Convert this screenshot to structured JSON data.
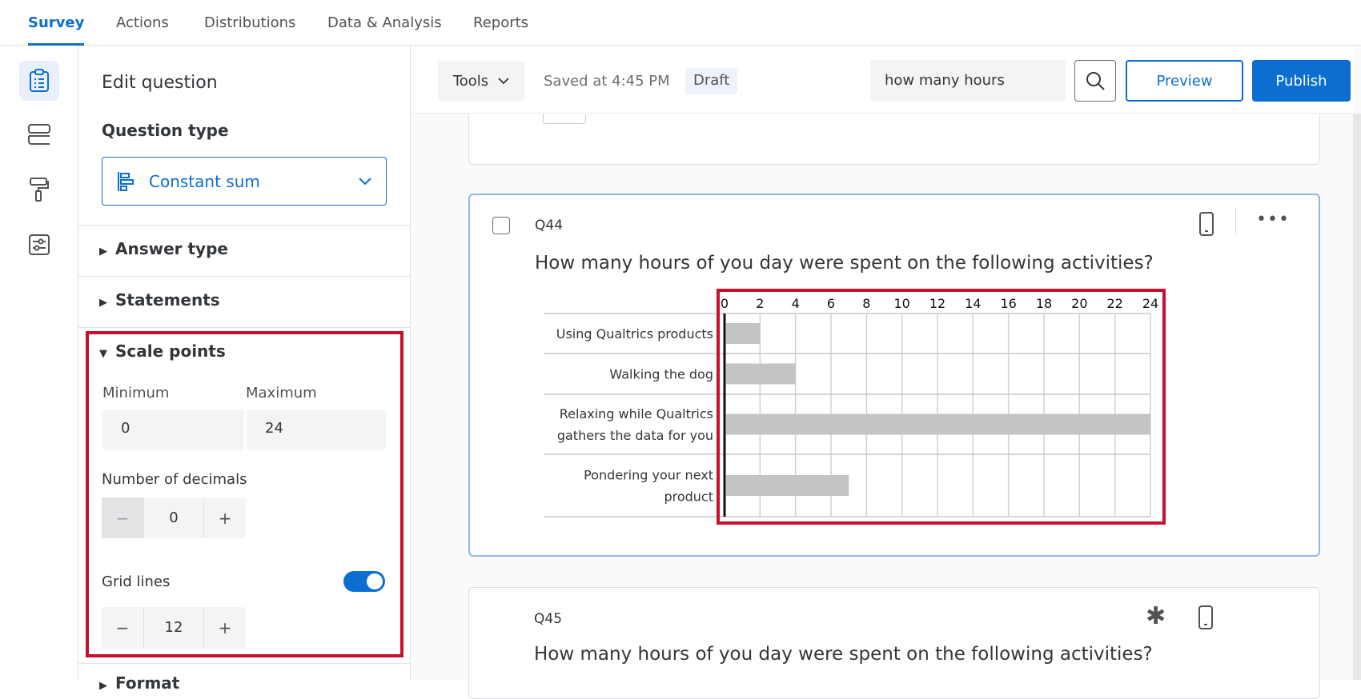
{
  "nav": {
    "tabs": [
      {
        "label": "Survey",
        "active": true
      },
      {
        "label": "Actions"
      },
      {
        "label": "Distributions"
      },
      {
        "label": "Data & Analysis"
      },
      {
        "label": "Reports"
      }
    ]
  },
  "rail": {
    "icons": [
      "survey-clipboard-icon",
      "survey-flow-icon",
      "look-and-feel-paint-roller-icon",
      "survey-options-icon"
    ]
  },
  "panel": {
    "title": "Edit question",
    "question_type_label": "Question type",
    "question_type_value": "Constant sum",
    "sections": {
      "answer_type": "Answer type",
      "statements": "Statements",
      "scale_points": "Scale points",
      "format": "Format"
    },
    "minimum_label": "Minimum",
    "minimum_value": "0",
    "maximum_label": "Maximum",
    "maximum_value": "24",
    "decimals_label": "Number of decimals",
    "decimals_value": "0",
    "grid_lines_label": "Grid lines",
    "grid_lines_enabled": true,
    "grid_lines_value": "12"
  },
  "toolbar": {
    "tools": "Tools",
    "saved": "Saved at 4:45 PM",
    "status": "Draft",
    "search_value": "how many hours",
    "preview": "Preview",
    "publish": "Publish"
  },
  "colors": {
    "accent": "#0b6ed0",
    "highlight": "#c8102e",
    "bar": "#c4c4c4"
  },
  "q44": {
    "id": "Q44",
    "text": "How many hours of you day were spent on the following activities?"
  },
  "q45": {
    "id": "Q45",
    "text": "How many hours of you day were spent on the following activities?"
  },
  "chart_data": {
    "type": "bar",
    "orientation": "horizontal",
    "categories": [
      "Using Qualtrics products",
      "Walking the dog",
      "Relaxing while Qualtrics gathers the data for you",
      "Pondering your next product"
    ],
    "values": [
      2,
      4,
      24,
      7
    ],
    "xlim": [
      0,
      24
    ],
    "ticks": [
      "0",
      "2",
      "4",
      "6",
      "8",
      "10",
      "12",
      "14",
      "16",
      "18",
      "20",
      "22",
      "24"
    ],
    "grid": true
  }
}
